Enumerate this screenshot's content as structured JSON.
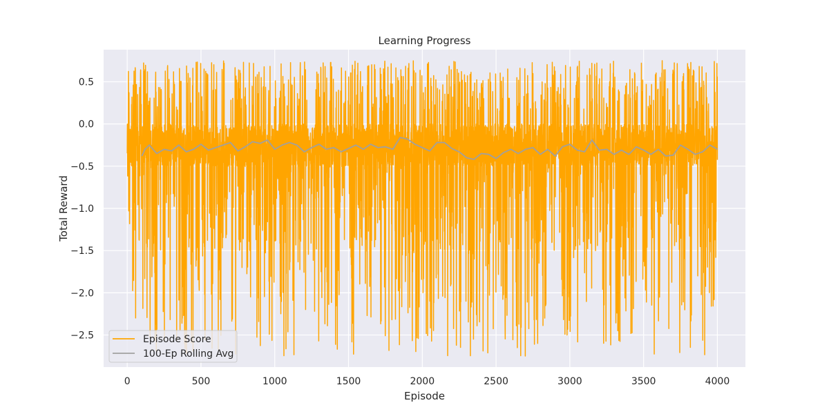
{
  "chart_data": {
    "type": "line",
    "title": "Learning Progress",
    "xlabel": "Episode",
    "ylabel": "Total Reward",
    "xlim": [
      -160,
      4190
    ],
    "ylim": [
      -2.88,
      0.88
    ],
    "xticks": [
      0,
      500,
      1000,
      1500,
      2000,
      2500,
      3000,
      3500,
      4000
    ],
    "xtick_labels": [
      "0",
      "500",
      "1000",
      "1500",
      "2000",
      "2500",
      "3000",
      "3500",
      "4000"
    ],
    "yticks": [
      0.5,
      0.0,
      -0.5,
      -1.0,
      -1.5,
      -2.0,
      -2.5
    ],
    "ytick_labels": [
      "0.5",
      "0.0",
      "−0.5",
      "−1.0",
      "−1.5",
      "−2.0",
      "−2.5"
    ],
    "grid": true,
    "background": "#eaeaf2",
    "legend_position": "lower-left",
    "episode_score": {
      "name": "Episode Score",
      "color": "#ffa500",
      "x_range": [
        0,
        4000
      ],
      "y_min": -2.75,
      "y_max": 0.75,
      "typical_band": [
        -0.5,
        0.0
      ]
    },
    "series": [
      {
        "name": "100-Ep Rolling Avg",
        "color": "#a0a0a0",
        "x": [
          99,
          120,
          150,
          200,
          250,
          300,
          350,
          400,
          450,
          500,
          550,
          600,
          650,
          700,
          750,
          800,
          850,
          900,
          950,
          1000,
          1050,
          1100,
          1150,
          1200,
          1250,
          1300,
          1350,
          1400,
          1450,
          1500,
          1550,
          1600,
          1650,
          1700,
          1750,
          1800,
          1850,
          1900,
          1950,
          2000,
          2050,
          2100,
          2150,
          2200,
          2250,
          2300,
          2350,
          2400,
          2450,
          2500,
          2550,
          2600,
          2650,
          2700,
          2750,
          2800,
          2850,
          2900,
          2950,
          3000,
          3050,
          3100,
          3150,
          3200,
          3250,
          3300,
          3350,
          3400,
          3450,
          3500,
          3550,
          3600,
          3650,
          3700,
          3750,
          3800,
          3850,
          3900,
          3950,
          4000
        ],
        "values": [
          -0.38,
          -0.3,
          -0.25,
          -0.35,
          -0.3,
          -0.32,
          -0.25,
          -0.33,
          -0.3,
          -0.24,
          -0.31,
          -0.28,
          -0.25,
          -0.22,
          -0.32,
          -0.27,
          -0.21,
          -0.23,
          -0.19,
          -0.3,
          -0.25,
          -0.22,
          -0.25,
          -0.33,
          -0.28,
          -0.24,
          -0.3,
          -0.28,
          -0.33,
          -0.29,
          -0.25,
          -0.3,
          -0.24,
          -0.28,
          -0.27,
          -0.3,
          -0.16,
          -0.18,
          -0.24,
          -0.28,
          -0.32,
          -0.22,
          -0.22,
          -0.29,
          -0.33,
          -0.4,
          -0.42,
          -0.35,
          -0.36,
          -0.41,
          -0.34,
          -0.3,
          -0.35,
          -0.3,
          -0.28,
          -0.36,
          -0.3,
          -0.38,
          -0.27,
          -0.24,
          -0.31,
          -0.33,
          -0.19,
          -0.31,
          -0.3,
          -0.36,
          -0.31,
          -0.36,
          -0.27,
          -0.31,
          -0.36,
          -0.3,
          -0.38,
          -0.37,
          -0.25,
          -0.3,
          -0.36,
          -0.33,
          -0.25,
          -0.3
        ]
      }
    ]
  }
}
